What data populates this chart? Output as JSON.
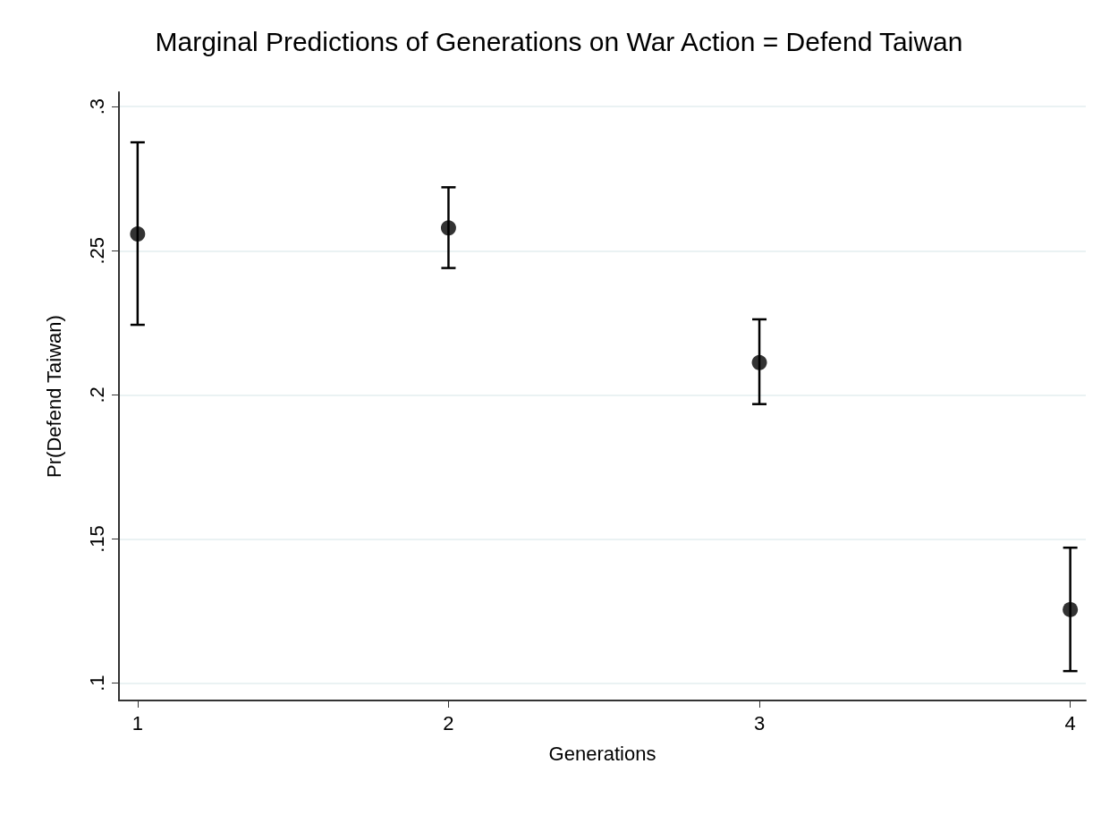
{
  "chart_data": {
    "type": "scatter",
    "title": "Marginal Predictions of Generations on War Action = Defend Taiwan",
    "xlabel": "Generations",
    "ylabel": "Pr(Defend Taiwan)",
    "x": [
      1,
      2,
      3,
      4
    ],
    "series": [
      {
        "color": "#000000",
        "values": [
          0.2558,
          0.2579,
          0.2112,
          0.1255
        ],
        "errors": [
          [
            0.2243,
            0.2876
          ],
          [
            0.244,
            0.272
          ],
          [
            0.1968,
            0.2262
          ],
          [
            0.1042,
            0.147
          ]
        ]
      }
    ],
    "xlim": [
      0.94,
      4.05
    ],
    "xticks": [
      1,
      2,
      3,
      4
    ],
    "ylim": [
      0.094,
      0.305
    ],
    "yticks": [
      {
        "value": 0.1,
        "label": ".1"
      },
      {
        "value": 0.15,
        "label": ".15"
      },
      {
        "value": 0.2,
        "label": ".2"
      },
      {
        "value": 0.25,
        "label": ".25"
      },
      {
        "value": 0.3,
        "label": ".3"
      }
    ],
    "grid": "y",
    "marker": "circle"
  }
}
